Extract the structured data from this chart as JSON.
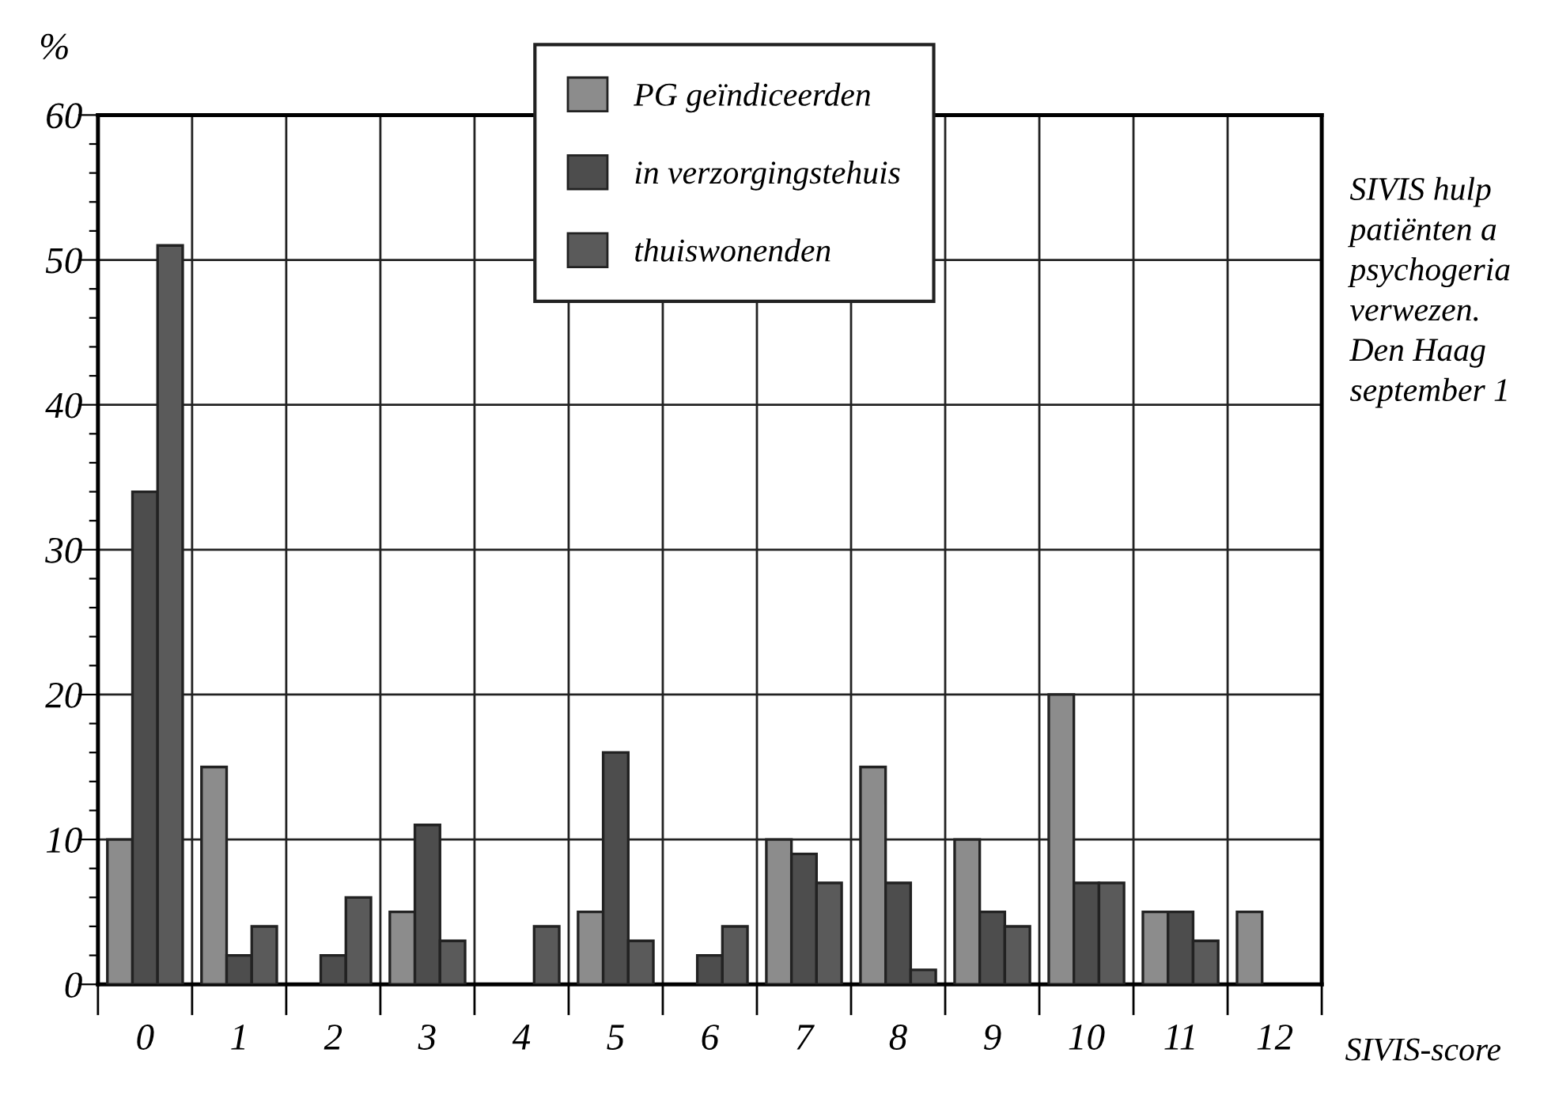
{
  "chart_data": {
    "type": "bar",
    "categories": [
      "0",
      "1",
      "2",
      "3",
      "4",
      "5",
      "6",
      "7",
      "8",
      "9",
      "10",
      "11",
      "12"
    ],
    "series": [
      {
        "name": "PG geïndiceerden",
        "color": "#8c8c8c",
        "values": [
          10,
          15,
          0,
          5,
          0,
          5,
          0,
          10,
          15,
          10,
          20,
          5,
          5
        ]
      },
      {
        "name": "in verzorgingstehuis",
        "color": "#4d4d4d",
        "values": [
          34,
          2,
          2,
          11,
          0,
          16,
          2,
          9,
          7,
          5,
          7,
          5,
          0
        ]
      },
      {
        "name": "thuiswonenden",
        "color": "#5a5a5a",
        "values": [
          51,
          4,
          6,
          3,
          4,
          3,
          4,
          7,
          1,
          4,
          7,
          3,
          0
        ]
      }
    ],
    "ylabel": "%",
    "xlabel": "SIVIS-score",
    "ylim": [
      0,
      60
    ],
    "yticks": [
      0,
      {
        "value": 2,
        "label": null
      },
      {
        "value": 4,
        "label": null
      },
      {
        "value": 6,
        "label": null
      },
      {
        "value": 8,
        "label": null
      },
      10,
      {
        "value": 12,
        "label": null
      },
      {
        "value": 14,
        "label": null
      },
      {
        "value": 16,
        "label": null
      },
      {
        "value": 18,
        "label": null
      },
      20,
      {
        "value": 22,
        "label": null
      },
      {
        "value": 24,
        "label": null
      },
      {
        "value": 26,
        "label": null
      },
      {
        "value": 28,
        "label": null
      },
      30,
      {
        "value": 32,
        "label": null
      },
      {
        "value": 34,
        "label": null
      },
      {
        "value": 36,
        "label": null
      },
      {
        "value": 38,
        "label": null
      },
      40,
      {
        "value": 42,
        "label": null
      },
      {
        "value": 44,
        "label": null
      },
      {
        "value": 46,
        "label": null
      },
      {
        "value": 48,
        "label": null
      },
      50,
      {
        "value": 52,
        "label": null
      },
      {
        "value": 54,
        "label": null
      },
      {
        "value": 56,
        "label": null
      },
      {
        "value": 58,
        "label": null
      },
      60
    ],
    "grid": true,
    "legend": "top",
    "annotations": [
      "SIVIS hulp\npatiënten a\npsychogeria\nverwezen.\nDen Haag\nseptember 1"
    ]
  }
}
